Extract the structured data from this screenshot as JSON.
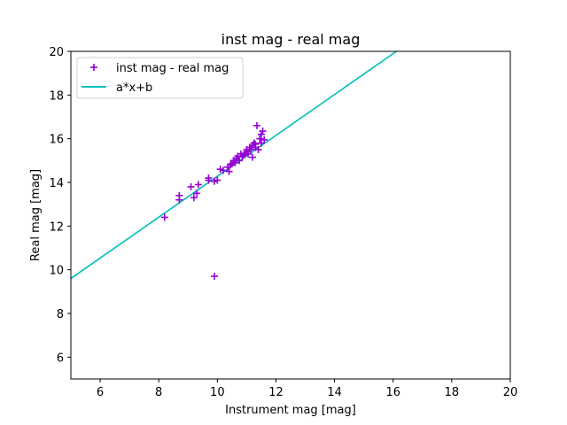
{
  "chart_data": {
    "type": "scatter",
    "title": "inst mag - real mag",
    "xlabel": "Instrument mag [mag]",
    "ylabel": "Real mag [mag]",
    "xlim": [
      5,
      20
    ],
    "ylim": [
      5,
      20
    ],
    "xticks": [
      6,
      8,
      10,
      12,
      14,
      16,
      18,
      20
    ],
    "yticks": [
      6,
      8,
      10,
      12,
      14,
      16,
      18,
      20
    ],
    "grid": false,
    "legend_position": "top-left",
    "series": [
      {
        "name": "inst mag - real mag",
        "kind": "scatter",
        "marker": "plus",
        "color": "#9400d3",
        "points": [
          [
            8.2,
            12.4
          ],
          [
            8.7,
            13.4
          ],
          [
            8.7,
            13.2
          ],
          [
            9.1,
            13.8
          ],
          [
            9.2,
            13.3
          ],
          [
            9.3,
            13.5
          ],
          [
            9.35,
            13.9
          ],
          [
            9.7,
            14.2
          ],
          [
            9.7,
            14.1
          ],
          [
            9.9,
            14.05
          ],
          [
            10.0,
            14.1
          ],
          [
            10.1,
            14.6
          ],
          [
            10.2,
            14.55
          ],
          [
            10.35,
            14.7
          ],
          [
            10.4,
            14.5
          ],
          [
            10.45,
            14.8
          ],
          [
            10.5,
            14.85
          ],
          [
            10.55,
            15.0
          ],
          [
            10.6,
            14.9
          ],
          [
            10.65,
            15.1
          ],
          [
            10.7,
            15.2
          ],
          [
            10.75,
            15.0
          ],
          [
            10.8,
            15.3
          ],
          [
            10.85,
            15.2
          ],
          [
            10.9,
            15.25
          ],
          [
            10.95,
            15.3
          ],
          [
            11.0,
            15.4
          ],
          [
            11.05,
            15.3
          ],
          [
            11.1,
            15.6
          ],
          [
            11.15,
            15.5
          ],
          [
            11.2,
            15.7
          ],
          [
            11.2,
            15.15
          ],
          [
            11.25,
            15.8
          ],
          [
            11.3,
            15.6
          ],
          [
            11.35,
            16.6
          ],
          [
            11.4,
            15.5
          ],
          [
            11.45,
            16.0
          ],
          [
            11.5,
            15.8
          ],
          [
            11.5,
            16.2
          ],
          [
            11.55,
            16.35
          ],
          [
            11.6,
            15.95
          ],
          [
            11.3,
            15.75
          ],
          [
            11.0,
            15.5
          ],
          [
            9.9,
            9.7
          ]
        ]
      },
      {
        "name": "a*x+b",
        "kind": "line",
        "color": "#00bfbf",
        "slope": 0.936,
        "intercept": 4.92
      }
    ]
  }
}
